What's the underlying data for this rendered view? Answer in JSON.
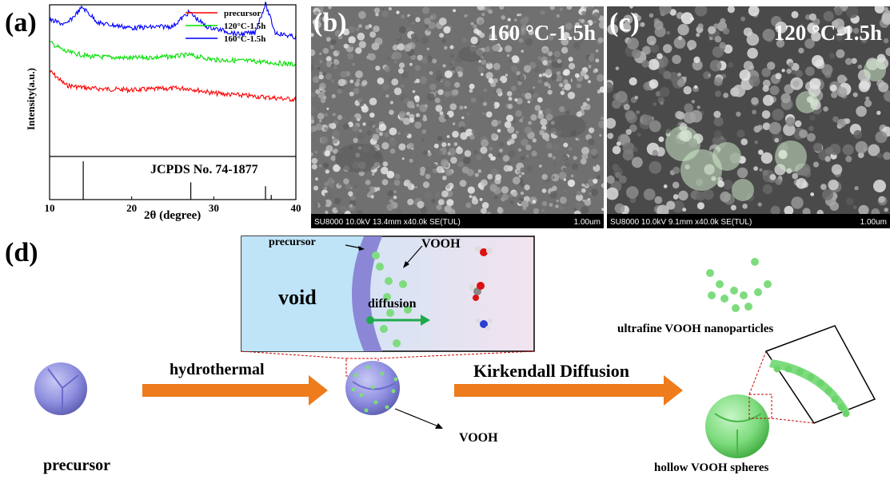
{
  "panel_a": {
    "letter": "(a)",
    "ylabel": "Intensity(a.u.)",
    "xlabel": "2θ (degree)",
    "reference": "JCPDS No. 74-1877",
    "legend": [
      {
        "name": "precursor",
        "color": "#ff0000"
      },
      {
        "name": "120°C-1.5h",
        "color": "#00e000"
      },
      {
        "name": "160°C-1.5h",
        "color": "#0000ff"
      }
    ]
  },
  "chart_data": {
    "type": "line",
    "xlabel": "2θ (degree)",
    "ylabel": "Intensity(a.u.)",
    "xlim": [
      10,
      40
    ],
    "x_ticks": [
      "10",
      "20",
      "30",
      "40"
    ],
    "y_ticks_labeled": false,
    "legend_position": "top-right",
    "series": [
      {
        "name": "precursor",
        "color": "#ff0000",
        "x": [
          10,
          12,
          15,
          20,
          25,
          27,
          30,
          35,
          40
        ],
        "y": [
          0.56,
          0.47,
          0.45,
          0.44,
          0.45,
          0.45,
          0.42,
          0.4,
          0.38
        ]
      },
      {
        "name": "120°C-1.5h",
        "color": "#00e000",
        "x": [
          10,
          12,
          15,
          20,
          25,
          27,
          30,
          35,
          40
        ],
        "y": [
          0.74,
          0.68,
          0.65,
          0.64,
          0.65,
          0.66,
          0.63,
          0.62,
          0.6
        ]
      },
      {
        "name": "160°C-1.5h",
        "color": "#0000ff",
        "x": [
          10,
          12,
          14,
          16,
          20,
          25,
          27,
          29,
          33,
          35,
          36.3,
          37.5,
          40
        ],
        "y": [
          0.88,
          0.85,
          0.96,
          0.86,
          0.83,
          0.84,
          0.93,
          0.84,
          0.79,
          0.8,
          0.98,
          0.8,
          0.77
        ]
      }
    ],
    "reference_peaks": {
      "label": "JCPDS No. 74-1877",
      "positions": [
        14.1,
        27.2,
        36.3,
        37.0
      ],
      "intensities": [
        1.0,
        0.45,
        0.35,
        0.12
      ]
    }
  },
  "panel_b": {
    "letter": "(b)",
    "title": "160 °C-1.5h",
    "info": "SU8000 10.0kV 13.4mm x40.0k SE(TUL)",
    "scale": "1.00um"
  },
  "panel_c": {
    "letter": "(c)",
    "title": "120 °C-1.5h",
    "info": "SU8000 10.0kV 9.1mm x40.0k SE(TUL)",
    "scale": "1.00um"
  },
  "panel_d": {
    "letter": "(d)",
    "inset_precursor": "precursor",
    "inset_void": "void",
    "inset_diffusion": "diffusion",
    "inset_vooh": "VOOH",
    "step1_arrow": "hydrothermal",
    "step2_arrow": "Kirkendall Diffusion",
    "left_label": "precursor",
    "middle_vooh": "VOOH",
    "nanoparticles_label": "ultrafine VOOH nanoparticles",
    "hollow_label": "hollow VOOH spheres",
    "colors": {
      "sphere": "#9a9ae6",
      "vooh": "#7ee07e",
      "arrow": "#ee7b1c",
      "diffusion": "#1faa4a"
    }
  }
}
